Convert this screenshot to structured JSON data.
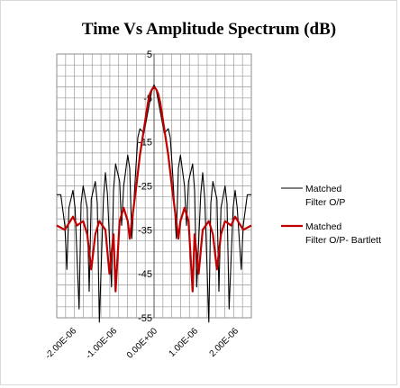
{
  "chart_data": {
    "type": "line",
    "title": "Time Vs Amplitude Spectrum (dB)",
    "xlabel": "",
    "ylabel": "",
    "xlim": [
      -2.4e-06,
      2.4e-06
    ],
    "ylim": [
      -55,
      5
    ],
    "x_tick_values": [
      -2e-06,
      -1e-06,
      0,
      1e-06,
      2e-06
    ],
    "x_tick_labels": [
      "-2.00E-06",
      "-1.00E-06",
      "0.00E+00",
      "1.00E-06",
      "2.00E-06"
    ],
    "y_tick_values": [
      5,
      -5,
      -15,
      -25,
      -35,
      -45,
      -55
    ],
    "y_tick_labels": [
      "5",
      "-5",
      "-15",
      "-25",
      "-35",
      "-45",
      "-55"
    ],
    "grid": true,
    "legend_position": "right",
    "series": [
      {
        "name": "Matched Filter O/P",
        "color": "#000000",
        "x": [
          -2.4e-06,
          -2.3e-06,
          -2.2e-06,
          -2.15e-06,
          -2.1e-06,
          -2e-06,
          -1.95e-06,
          -1.85e-06,
          -1.8e-06,
          -1.75e-06,
          -1.65e-06,
          -1.6e-06,
          -1.55e-06,
          -1.45e-06,
          -1.4e-06,
          -1.35e-06,
          -1.25e-06,
          -1.2e-06,
          -1.15e-06,
          -1.05e-06,
          -1e-06,
          -9.5e-07,
          -8.5e-07,
          -8e-07,
          -7.5e-07,
          -6.5e-07,
          -6e-07,
          -5.5e-07,
          -4.5e-07,
          -4e-07,
          -3.5e-07,
          -2.5e-07,
          -1.5e-07,
          -5e-08,
          0,
          5e-08,
          1.5e-07,
          2.5e-07,
          3.5e-07,
          4e-07,
          4.5e-07,
          5.5e-07,
          6e-07,
          6.5e-07,
          7.5e-07,
          8e-07,
          8.5e-07,
          9.5e-07,
          1e-06,
          1.05e-06,
          1.15e-06,
          1.2e-06,
          1.25e-06,
          1.35e-06,
          1.4e-06,
          1.45e-06,
          1.55e-06,
          1.6e-06,
          1.65e-06,
          1.75e-06,
          1.8e-06,
          1.85e-06,
          1.95e-06,
          2e-06,
          2.05e-06,
          2.15e-06,
          2.2e-06,
          2.3e-06,
          2.4e-06
        ],
        "values": [
          -27,
          -27,
          -34,
          -44,
          -30,
          -26,
          -30,
          -53,
          -29,
          -25,
          -30,
          -49,
          -28,
          -24,
          -29,
          -56,
          -28,
          -22,
          -27,
          -48,
          -26,
          -20,
          -24,
          -34,
          -25,
          -18,
          -21,
          -37,
          -21,
          -14,
          -12,
          -13,
          -8,
          -3,
          -2,
          -3,
          -8,
          -13,
          -12,
          -14,
          -21,
          -37,
          -21,
          -18,
          -25,
          -34,
          -24,
          -20,
          -26,
          -48,
          -27,
          -22,
          -28,
          -56,
          -29,
          -24,
          -28,
          -49,
          -30,
          -25,
          -29,
          -53,
          -30,
          -26,
          -30,
          -44,
          -34,
          -27,
          -27
        ]
      },
      {
        "name": "Matched Filter O/P- Bartlett",
        "color": "#c00000",
        "x": [
          -2.4e-06,
          -2.2e-06,
          -2e-06,
          -1.9e-06,
          -1.75e-06,
          -1.65e-06,
          -1.55e-06,
          -1.45e-06,
          -1.35e-06,
          -1.2e-06,
          -1.1e-06,
          -1e-06,
          -9.5e-07,
          -8.5e-07,
          -7.5e-07,
          -6.5e-07,
          -6e-07,
          -5.5e-07,
          -4.5e-07,
          -3.5e-07,
          -2.5e-07,
          -1.5e-07,
          -1e-07,
          -5e-08,
          0,
          5e-08,
          1e-07,
          1.5e-07,
          2.5e-07,
          3.5e-07,
          4.5e-07,
          5.5e-07,
          6e-07,
          6.5e-07,
          7.5e-07,
          8.5e-07,
          9.5e-07,
          1e-06,
          1.1e-06,
          1.2e-06,
          1.35e-06,
          1.45e-06,
          1.55e-06,
          1.65e-06,
          1.75e-06,
          1.9e-06,
          2e-06,
          2.2e-06,
          2.4e-06
        ],
        "values": [
          -34,
          -35,
          -32,
          -34,
          -33,
          -36,
          -44,
          -36,
          -33,
          -35,
          -45,
          -36,
          -49,
          -33,
          -30,
          -33,
          -37,
          -33,
          -26,
          -18,
          -12,
          -6,
          -4,
          -3,
          -2.5,
          -3,
          -4,
          -6,
          -12,
          -18,
          -26,
          -33,
          -37,
          -33,
          -30,
          -33,
          -49,
          -36,
          -45,
          -35,
          -33,
          -36,
          -44,
          -36,
          -33,
          -34,
          -32,
          -35,
          -34
        ]
      }
    ]
  }
}
